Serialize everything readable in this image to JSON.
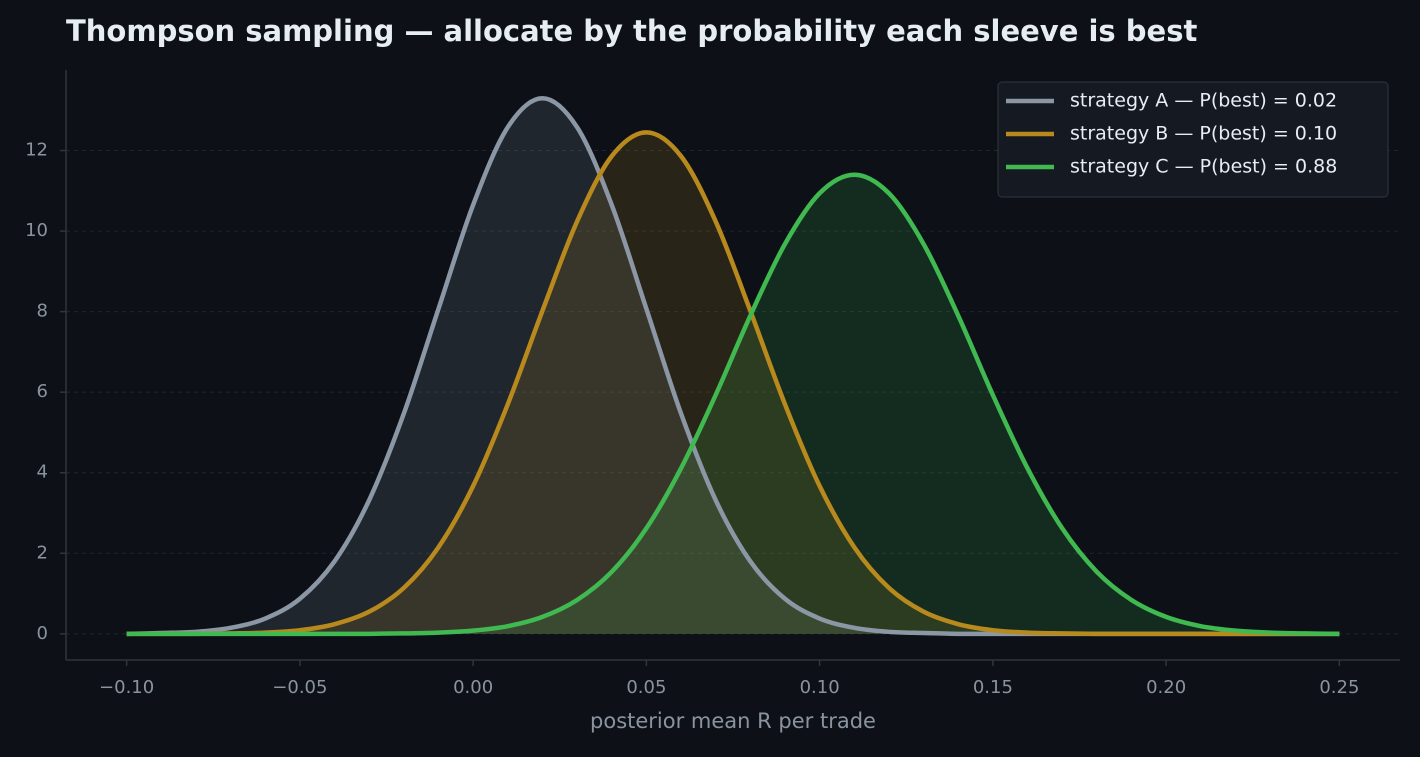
{
  "chart_data": {
    "type": "density",
    "title": "Thompson sampling — allocate by the probability each sleeve is best",
    "x_label": "posterior mean R per trade",
    "x": [
      -0.1,
      -0.09,
      -0.08,
      -0.07,
      -0.06,
      -0.05,
      -0.04,
      -0.03,
      -0.02,
      -0.01,
      0.0,
      0.01,
      0.02,
      0.03,
      0.04,
      0.05,
      0.06,
      0.07,
      0.08,
      0.09,
      0.1,
      0.11,
      0.12,
      0.13,
      0.14,
      0.15,
      0.16,
      0.17,
      0.18,
      0.19,
      0.2,
      0.21,
      0.22,
      0.23,
      0.24,
      0.25
    ],
    "series": [
      {
        "name": "strategy A — P(best) = 0.02",
        "color": "#8b97a5",
        "values": [
          0.0,
          0.02,
          0.05,
          0.15,
          0.38,
          0.87,
          1.8,
          3.32,
          5.47,
          8.07,
          10.65,
          12.58,
          13.3,
          12.58,
          10.65,
          8.07,
          5.47,
          3.32,
          1.8,
          0.87,
          0.38,
          0.15,
          0.05,
          0.02,
          0.0,
          0.0,
          0.0,
          0.0,
          0.0,
          0.0,
          0.0,
          0.0,
          0.0,
          0.0,
          0.0,
          0.0
        ]
      },
      {
        "name": "strategy B — P(best) = 0.10",
        "color": "#b8891c",
        "values": [
          0.0,
          0.0,
          0.0,
          0.01,
          0.03,
          0.09,
          0.24,
          0.55,
          1.14,
          2.15,
          3.67,
          5.7,
          8.02,
          10.24,
          11.86,
          12.45,
          11.86,
          10.24,
          8.02,
          5.7,
          3.67,
          2.15,
          1.14,
          0.55,
          0.24,
          0.09,
          0.03,
          0.01,
          0.0,
          0.0,
          0.0,
          0.0,
          0.0,
          0.0,
          0.0,
          0.0
        ]
      },
      {
        "name": "strategy C — P(best) = 0.88",
        "color": "#3fb950",
        "values": [
          0.0,
          0.0,
          0.0,
          0.0,
          0.0,
          0.0,
          0.0,
          0.0,
          0.01,
          0.03,
          0.08,
          0.19,
          0.42,
          0.84,
          1.54,
          2.62,
          4.11,
          5.93,
          7.9,
          9.68,
          10.94,
          11.4,
          10.94,
          9.68,
          7.9,
          5.93,
          4.11,
          2.62,
          1.54,
          0.84,
          0.42,
          0.19,
          0.08,
          0.03,
          0.01,
          0.0
        ]
      }
    ],
    "xlim": [
      -0.1175,
      0.2675
    ],
    "ylim": [
      -0.65,
      14.0
    ],
    "xticks": [
      {
        "value": -0.1,
        "label": "−0.10"
      },
      {
        "value": -0.05,
        "label": "−0.05"
      },
      {
        "value": 0.0,
        "label": "0.00"
      },
      {
        "value": 0.05,
        "label": "0.05"
      },
      {
        "value": 0.1,
        "label": "0.10"
      },
      {
        "value": 0.15,
        "label": "0.15"
      },
      {
        "value": 0.2,
        "label": "0.20"
      },
      {
        "value": 0.25,
        "label": "0.25"
      }
    ],
    "yticks": [
      0,
      2,
      4,
      6,
      8,
      10,
      12
    ],
    "grid": true,
    "legend": "upper right"
  }
}
